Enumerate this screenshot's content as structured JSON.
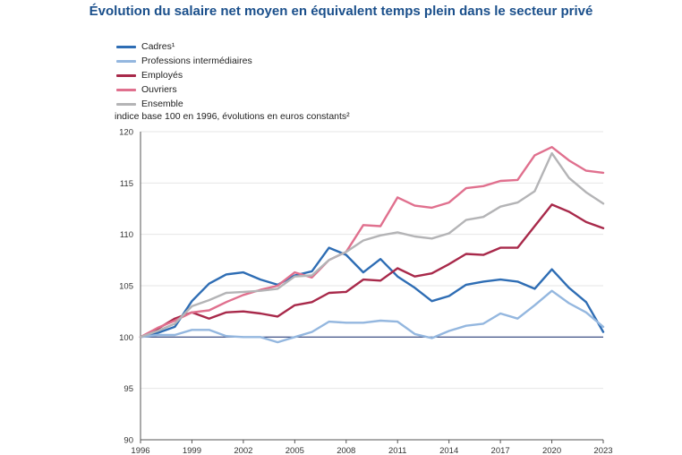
{
  "page": {
    "title": "Évolution du salaire net moyen en équivalent temps plein dans le secteur privé",
    "subtitle": "indice base 100 en 1996, évolutions en euros constants²"
  },
  "chart_data": {
    "type": "line",
    "title": "Évolution du salaire net moyen en équivalent temps plein dans le secteur privé",
    "ylabel": "indice base 100 en 1996, évolutions en euros constants²",
    "xlabel": "",
    "ylim": [
      90,
      120
    ],
    "xlim": [
      1996,
      2023
    ],
    "yticks": [
      90,
      95,
      100,
      105,
      110,
      115,
      120
    ],
    "xticks": [
      1996,
      1999,
      2002,
      2005,
      2008,
      2011,
      2014,
      2017,
      2020,
      2023
    ],
    "reference_line": 100,
    "x": [
      1996,
      1997,
      1998,
      1999,
      2000,
      2001,
      2002,
      2003,
      2004,
      2005,
      2006,
      2007,
      2008,
      2009,
      2010,
      2011,
      2012,
      2013,
      2014,
      2015,
      2016,
      2017,
      2018,
      2019,
      2020,
      2021,
      2022,
      2023
    ],
    "series": [
      {
        "name": "Cadres¹",
        "color": "#2e6db4",
        "values": [
          100,
          100.4,
          101,
          103.5,
          105.2,
          106.1,
          106.3,
          105.6,
          105.1,
          106.0,
          106.4,
          108.7,
          108.0,
          106.3,
          107.6,
          105.9,
          104.8,
          103.5,
          104.0,
          105.1,
          105.4,
          105.6,
          105.4,
          104.7,
          106.6,
          104.8,
          103.4,
          100.5
        ]
      },
      {
        "name": "Professions intermédiaires",
        "color": "#94b7df",
        "values": [
          100,
          100.2,
          100.2,
          100.7,
          100.7,
          100.1,
          100.0,
          100.0,
          99.5,
          100.0,
          100.5,
          101.5,
          101.4,
          101.4,
          101.6,
          101.5,
          100.3,
          99.9,
          100.6,
          101.1,
          101.3,
          102.3,
          101.8,
          103.1,
          104.5,
          103.3,
          102.4,
          101.0
        ]
      },
      {
        "name": "Employés",
        "color": "#a8294a",
        "values": [
          100,
          100.8,
          101.8,
          102.4,
          101.8,
          102.4,
          102.5,
          102.3,
          102.0,
          103.1,
          103.4,
          104.3,
          104.4,
          105.6,
          105.5,
          106.7,
          105.9,
          106.2,
          107.1,
          108.1,
          108.0,
          108.7,
          108.7,
          110.8,
          112.9,
          112.2,
          111.2,
          110.6
        ]
      },
      {
        "name": "Ouvriers",
        "color": "#e0708e",
        "values": [
          100,
          100.9,
          101.6,
          102.4,
          102.6,
          103.4,
          104.1,
          104.6,
          105.0,
          106.3,
          105.8,
          107.5,
          108.3,
          110.9,
          110.8,
          113.6,
          112.8,
          112.6,
          113.1,
          114.5,
          114.7,
          115.2,
          115.3,
          117.7,
          118.5,
          117.2,
          116.2,
          116.0
        ]
      },
      {
        "name": "Ensemble",
        "color": "#b4b4b6",
        "values": [
          100,
          100.6,
          101.3,
          103.0,
          103.6,
          104.3,
          104.4,
          104.5,
          104.7,
          105.9,
          106.0,
          107.5,
          108.3,
          109.4,
          109.9,
          110.2,
          109.8,
          109.6,
          110.1,
          111.4,
          111.7,
          112.7,
          113.1,
          114.2,
          117.9,
          115.5,
          114.1,
          113.0
        ]
      }
    ]
  }
}
